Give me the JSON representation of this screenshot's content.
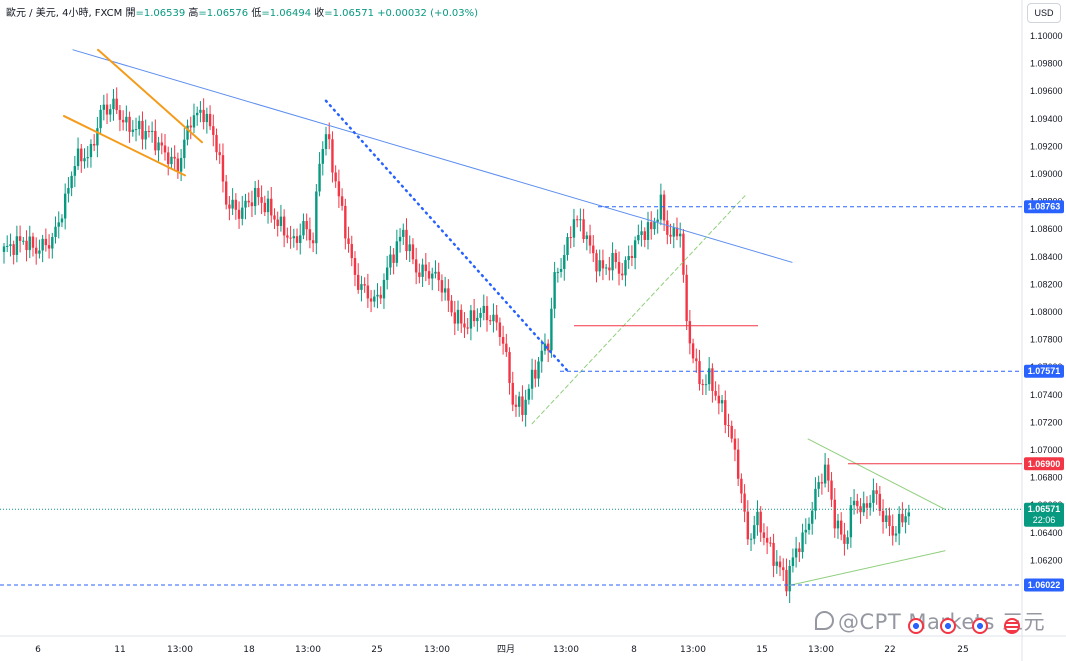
{
  "legend": {
    "symbol": "歐元 / 美元, 4小時, FXCM",
    "open_label": "開",
    "open": "=1.06539",
    "high_label": "高",
    "high": "=1.06576",
    "low_label": "低",
    "low": "=1.06494",
    "close_label": "收",
    "close": "=1.06571",
    "change": "+0.00032 (+0.03%)"
  },
  "currency": "USD",
  "watermark": "@CPT Markets 三元",
  "countdown": "22:06",
  "colors": {
    "up": "#089981",
    "down": "#f23645",
    "trendline": "#5b8def",
    "wedge": "#f59b1a",
    "dotted": "#2962ff",
    "channel": "#8fcf7d",
    "triangle": "#8fcf7d",
    "level_line": "#2962ff",
    "resistance": "#f23645",
    "price_line": "#089981",
    "grid": "#f0f3fa",
    "axis_text": "#131722"
  },
  "event_icons": [
    "eu-flag-icon",
    "eu-flag-icon",
    "eu-flag-icon",
    "us-flag-icon"
  ],
  "chart_data": {
    "type": "candlestick",
    "ylim": [
      1.0585,
      1.1015
    ],
    "grid": false,
    "y_ticks": [
      "1.10000",
      "1.09800",
      "1.09600",
      "1.09400",
      "1.09200",
      "1.09000",
      "1.08800",
      "1.08600",
      "1.08400",
      "1.08200",
      "1.08000",
      "1.07800",
      "1.07600",
      "1.07400",
      "1.07200",
      "1.07000",
      "1.06800",
      "1.06600",
      "1.06400",
      "1.06200",
      "1.06000"
    ],
    "x_ticks": [
      "6",
      "11",
      "13:00",
      "18",
      "13:00",
      "25",
      "13:00",
      "四月",
      "13:00",
      "8",
      "13:00",
      "15",
      "13:00",
      "22",
      "25"
    ],
    "price_labels": [
      {
        "value": 1.08763,
        "text": "1.08763",
        "color": "#2962ff"
      },
      {
        "value": 1.07571,
        "text": "1.07571",
        "color": "#2962ff"
      },
      {
        "value": 1.069,
        "text": "1.06900",
        "color": "#f23645"
      },
      {
        "value": 1.06571,
        "text": "1.06571",
        "color": "#089981"
      },
      {
        "value": 1.06022,
        "text": "1.06022",
        "color": "#2962ff"
      }
    ],
    "anchors": [
      [
        0,
        1.0845
      ],
      [
        6,
        1.0852
      ],
      [
        10,
        1.0845
      ],
      [
        15,
        1.0852
      ],
      [
        19,
        1.088
      ],
      [
        22,
        1.091
      ],
      [
        27,
        1.0915
      ],
      [
        30,
        1.0945
      ],
      [
        34,
        1.095
      ],
      [
        38,
        1.0935
      ],
      [
        45,
        1.093
      ],
      [
        50,
        1.0915
      ],
      [
        54,
        1.0905
      ],
      [
        58,
        1.094
      ],
      [
        62,
        1.0945
      ],
      [
        66,
        1.0922
      ],
      [
        69,
        1.088
      ],
      [
        73,
        1.0872
      ],
      [
        78,
        1.0885
      ],
      [
        82,
        1.0875
      ],
      [
        86,
        1.0862
      ],
      [
        90,
        1.085
      ],
      [
        93,
        1.0862
      ],
      [
        96,
        1.0852
      ],
      [
        98,
        1.091
      ],
      [
        100,
        1.093
      ],
      [
        103,
        1.0895
      ],
      [
        106,
        1.086
      ],
      [
        109,
        1.0825
      ],
      [
        113,
        1.0812
      ],
      [
        116,
        1.0808
      ],
      [
        120,
        1.0838
      ],
      [
        124,
        1.0858
      ],
      [
        128,
        1.083
      ],
      [
        133,
        1.0828
      ],
      [
        136,
        1.082
      ],
      [
        139,
        1.08
      ],
      [
        143,
        1.079
      ],
      [
        148,
        1.08
      ],
      [
        152,
        1.0795
      ],
      [
        155,
        1.078
      ],
      [
        158,
        1.0735
      ],
      [
        161,
        1.073
      ],
      [
        164,
        1.0752
      ],
      [
        167,
        1.077
      ],
      [
        169,
        1.0778
      ],
      [
        171,
        1.0825
      ],
      [
        174,
        1.084
      ],
      [
        177,
        1.0868
      ],
      [
        180,
        1.086
      ],
      [
        183,
        1.084
      ],
      [
        186,
        1.083
      ],
      [
        189,
        1.0838
      ],
      [
        192,
        1.0828
      ],
      [
        195,
        1.0845
      ],
      [
        198,
        1.0858
      ],
      [
        201,
        1.086
      ],
      [
        204,
        1.0878
      ],
      [
        206,
        1.0858
      ],
      [
        208,
        1.0855
      ],
      [
        210,
        1.086
      ],
      [
        212,
        1.079
      ],
      [
        214,
        1.077
      ],
      [
        216,
        1.0748
      ],
      [
        219,
        1.0752
      ],
      [
        222,
        1.0735
      ],
      [
        225,
        1.0718
      ],
      [
        228,
        1.0685
      ],
      [
        231,
        1.0635
      ],
      [
        234,
        1.065
      ],
      [
        237,
        1.0632
      ],
      [
        240,
        1.0618
      ],
      [
        243,
        1.0605
      ],
      [
        246,
        1.0628
      ],
      [
        249,
        1.064
      ],
      [
        252,
        1.0668
      ],
      [
        255,
        1.0688
      ],
      [
        258,
        1.065
      ],
      [
        261,
        1.0632
      ],
      [
        264,
        1.0664
      ],
      [
        267,
        1.0655
      ],
      [
        270,
        1.067
      ],
      [
        273,
        1.0652
      ],
      [
        276,
        1.064
      ],
      [
        279,
        1.065
      ],
      [
        281,
        1.0657
      ]
    ],
    "drawings": [
      {
        "kind": "trendline",
        "x1": 73,
        "y1": 1.099,
        "x2": 792,
        "y2": 1.0836,
        "color": "#5b8def",
        "width": 1
      },
      {
        "kind": "trendline",
        "x1": 98,
        "y1": 1.099,
        "x2": 202,
        "y2": 1.0923,
        "color": "#f59b1a",
        "width": 2
      },
      {
        "kind": "trendline",
        "x1": 64,
        "y1": 1.0942,
        "x2": 185,
        "y2": 1.0899,
        "color": "#f59b1a",
        "width": 2
      },
      {
        "kind": "trendline",
        "x1": 326,
        "y1": 1.0953,
        "x2": 568,
        "y2": 1.0757,
        "color": "#2962ff",
        "width": 2.5,
        "dash": "1 5"
      },
      {
        "kind": "trendline",
        "x1": 532,
        "y1": 1.0719,
        "x2": 746,
        "y2": 1.0885,
        "color": "#8fcf7d",
        "width": 1,
        "dash": "4 3"
      },
      {
        "kind": "trendline",
        "x1": 808,
        "y1": 1.0708,
        "x2": 945,
        "y2": 1.0657,
        "color": "#8fcf7d",
        "width": 1
      },
      {
        "kind": "trendline",
        "x1": 790,
        "y1": 1.0602,
        "x2": 945,
        "y2": 1.0627,
        "color": "#8fcf7d",
        "width": 1
      },
      {
        "kind": "hline",
        "x1": 598,
        "x2": 1022,
        "y": 1.08763,
        "color": "#2962ff",
        "dash": "4 3"
      },
      {
        "kind": "hline",
        "x1": 560,
        "x2": 1022,
        "y": 1.07571,
        "color": "#2962ff",
        "dash": "4 3"
      },
      {
        "kind": "hline",
        "x1": 0,
        "x2": 1022,
        "y": 1.06022,
        "color": "#2962ff",
        "dash": "4 3"
      },
      {
        "kind": "hline",
        "x1": 574,
        "x2": 758,
        "y": 1.079,
        "color": "#f23645"
      },
      {
        "kind": "hline",
        "x1": 848,
        "x2": 1022,
        "y": 1.069,
        "color": "#f23645"
      },
      {
        "kind": "hline",
        "x1": 0,
        "x2": 1022,
        "y": 1.06571,
        "color": "#089981",
        "dash": "1 2"
      }
    ]
  }
}
